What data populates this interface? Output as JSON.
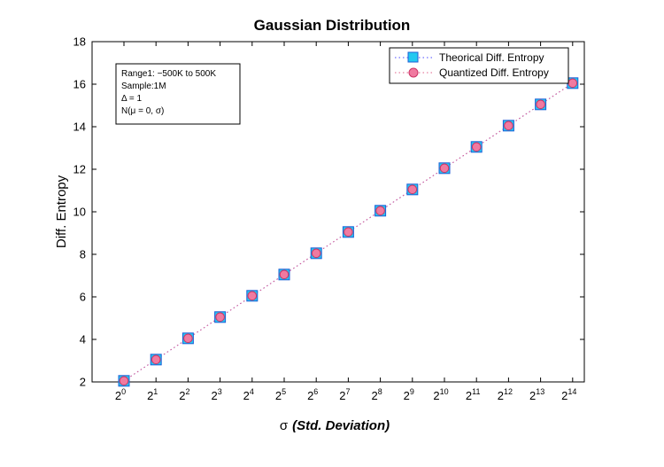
{
  "chart_data": {
    "type": "line",
    "title": "Gaussian Distribution",
    "xlabel_symbol": "σ",
    "xlabel_text": "(Std. Deviation)",
    "ylabel": "Diff. Entropy",
    "x_base": "2",
    "x_exponents": [
      "0",
      "1",
      "2",
      "3",
      "4",
      "5",
      "6",
      "7",
      "8",
      "9",
      "10",
      "11",
      "12",
      "13",
      "14"
    ],
    "ylim": [
      2,
      18
    ],
    "yticks": [
      "2",
      "4",
      "6",
      "8",
      "10",
      "12",
      "14",
      "16",
      "18"
    ],
    "grid": false,
    "legend_position": "top-right",
    "annotation": [
      "Range1: −500K to 500K",
      "Sample:1M",
      "Δ = 1",
      "N(μ = 0, σ)"
    ],
    "series": [
      {
        "name": "Theorical Diff. Entropy",
        "marker": "square",
        "color": "#1f5fd6",
        "fill": "#22c8f0",
        "line_color": "#4a4aff",
        "values": [
          2.05,
          3.05,
          4.05,
          5.05,
          6.05,
          7.05,
          8.05,
          9.05,
          10.05,
          11.05,
          12.05,
          13.05,
          14.05,
          15.05,
          16.05
        ]
      },
      {
        "name": "Quantized Diff. Entropy",
        "marker": "circle",
        "color": "#cc3366",
        "fill": "#f07aa0",
        "line_color": "#e0608a",
        "values": [
          2.05,
          3.05,
          4.05,
          5.05,
          6.05,
          7.05,
          8.05,
          9.05,
          10.05,
          11.05,
          12.05,
          13.05,
          14.05,
          15.05,
          16.05
        ]
      }
    ]
  }
}
